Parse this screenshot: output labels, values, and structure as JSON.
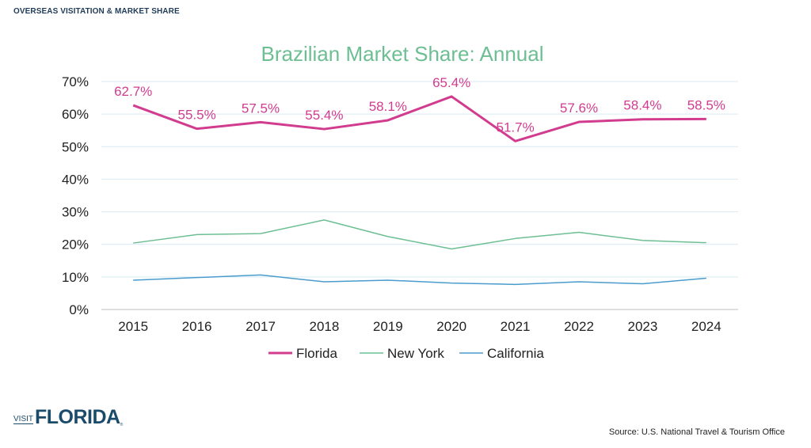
{
  "header": {
    "title": "OVERSEAS VISITATION & MARKET SHARE"
  },
  "logo": {
    "visit": "VISIT",
    "brand": "FLORIDA",
    "reg": "®"
  },
  "source": "Source: U.S. National Travel & Tourism Office",
  "chart_data": {
    "type": "line",
    "title": "Brazilian Market Share: Annual",
    "xlabel": "",
    "ylabel": "",
    "x": [
      "2015",
      "2016",
      "2017",
      "2018",
      "2019",
      "2020",
      "2021",
      "2022",
      "2023",
      "2024"
    ],
    "yticks": [
      "0%",
      "10%",
      "20%",
      "30%",
      "40%",
      "50%",
      "60%",
      "70%"
    ],
    "ylim": [
      0,
      70
    ],
    "grid": true,
    "legend_position": "bottom",
    "series": [
      {
        "name": "Florida",
        "color": "#d23c8f",
        "values": [
          62.7,
          55.5,
          57.5,
          55.4,
          58.1,
          65.4,
          51.7,
          57.6,
          58.4,
          58.5
        ],
        "labels": [
          "62.7%",
          "55.5%",
          "57.5%",
          "55.4%",
          "58.1%",
          "65.4%",
          "51.7%",
          "57.6%",
          "58.4%",
          "58.5%"
        ]
      },
      {
        "name": "New York",
        "color": "#6dbf93",
        "values": [
          20.4,
          23.0,
          23.3,
          27.5,
          22.4,
          18.6,
          21.8,
          23.7,
          21.2,
          20.5
        ]
      },
      {
        "name": "California",
        "color": "#4a9ccc",
        "values": [
          9.0,
          9.8,
          10.6,
          8.5,
          9.0,
          8.1,
          7.7,
          8.5,
          7.9,
          9.6
        ]
      }
    ]
  }
}
